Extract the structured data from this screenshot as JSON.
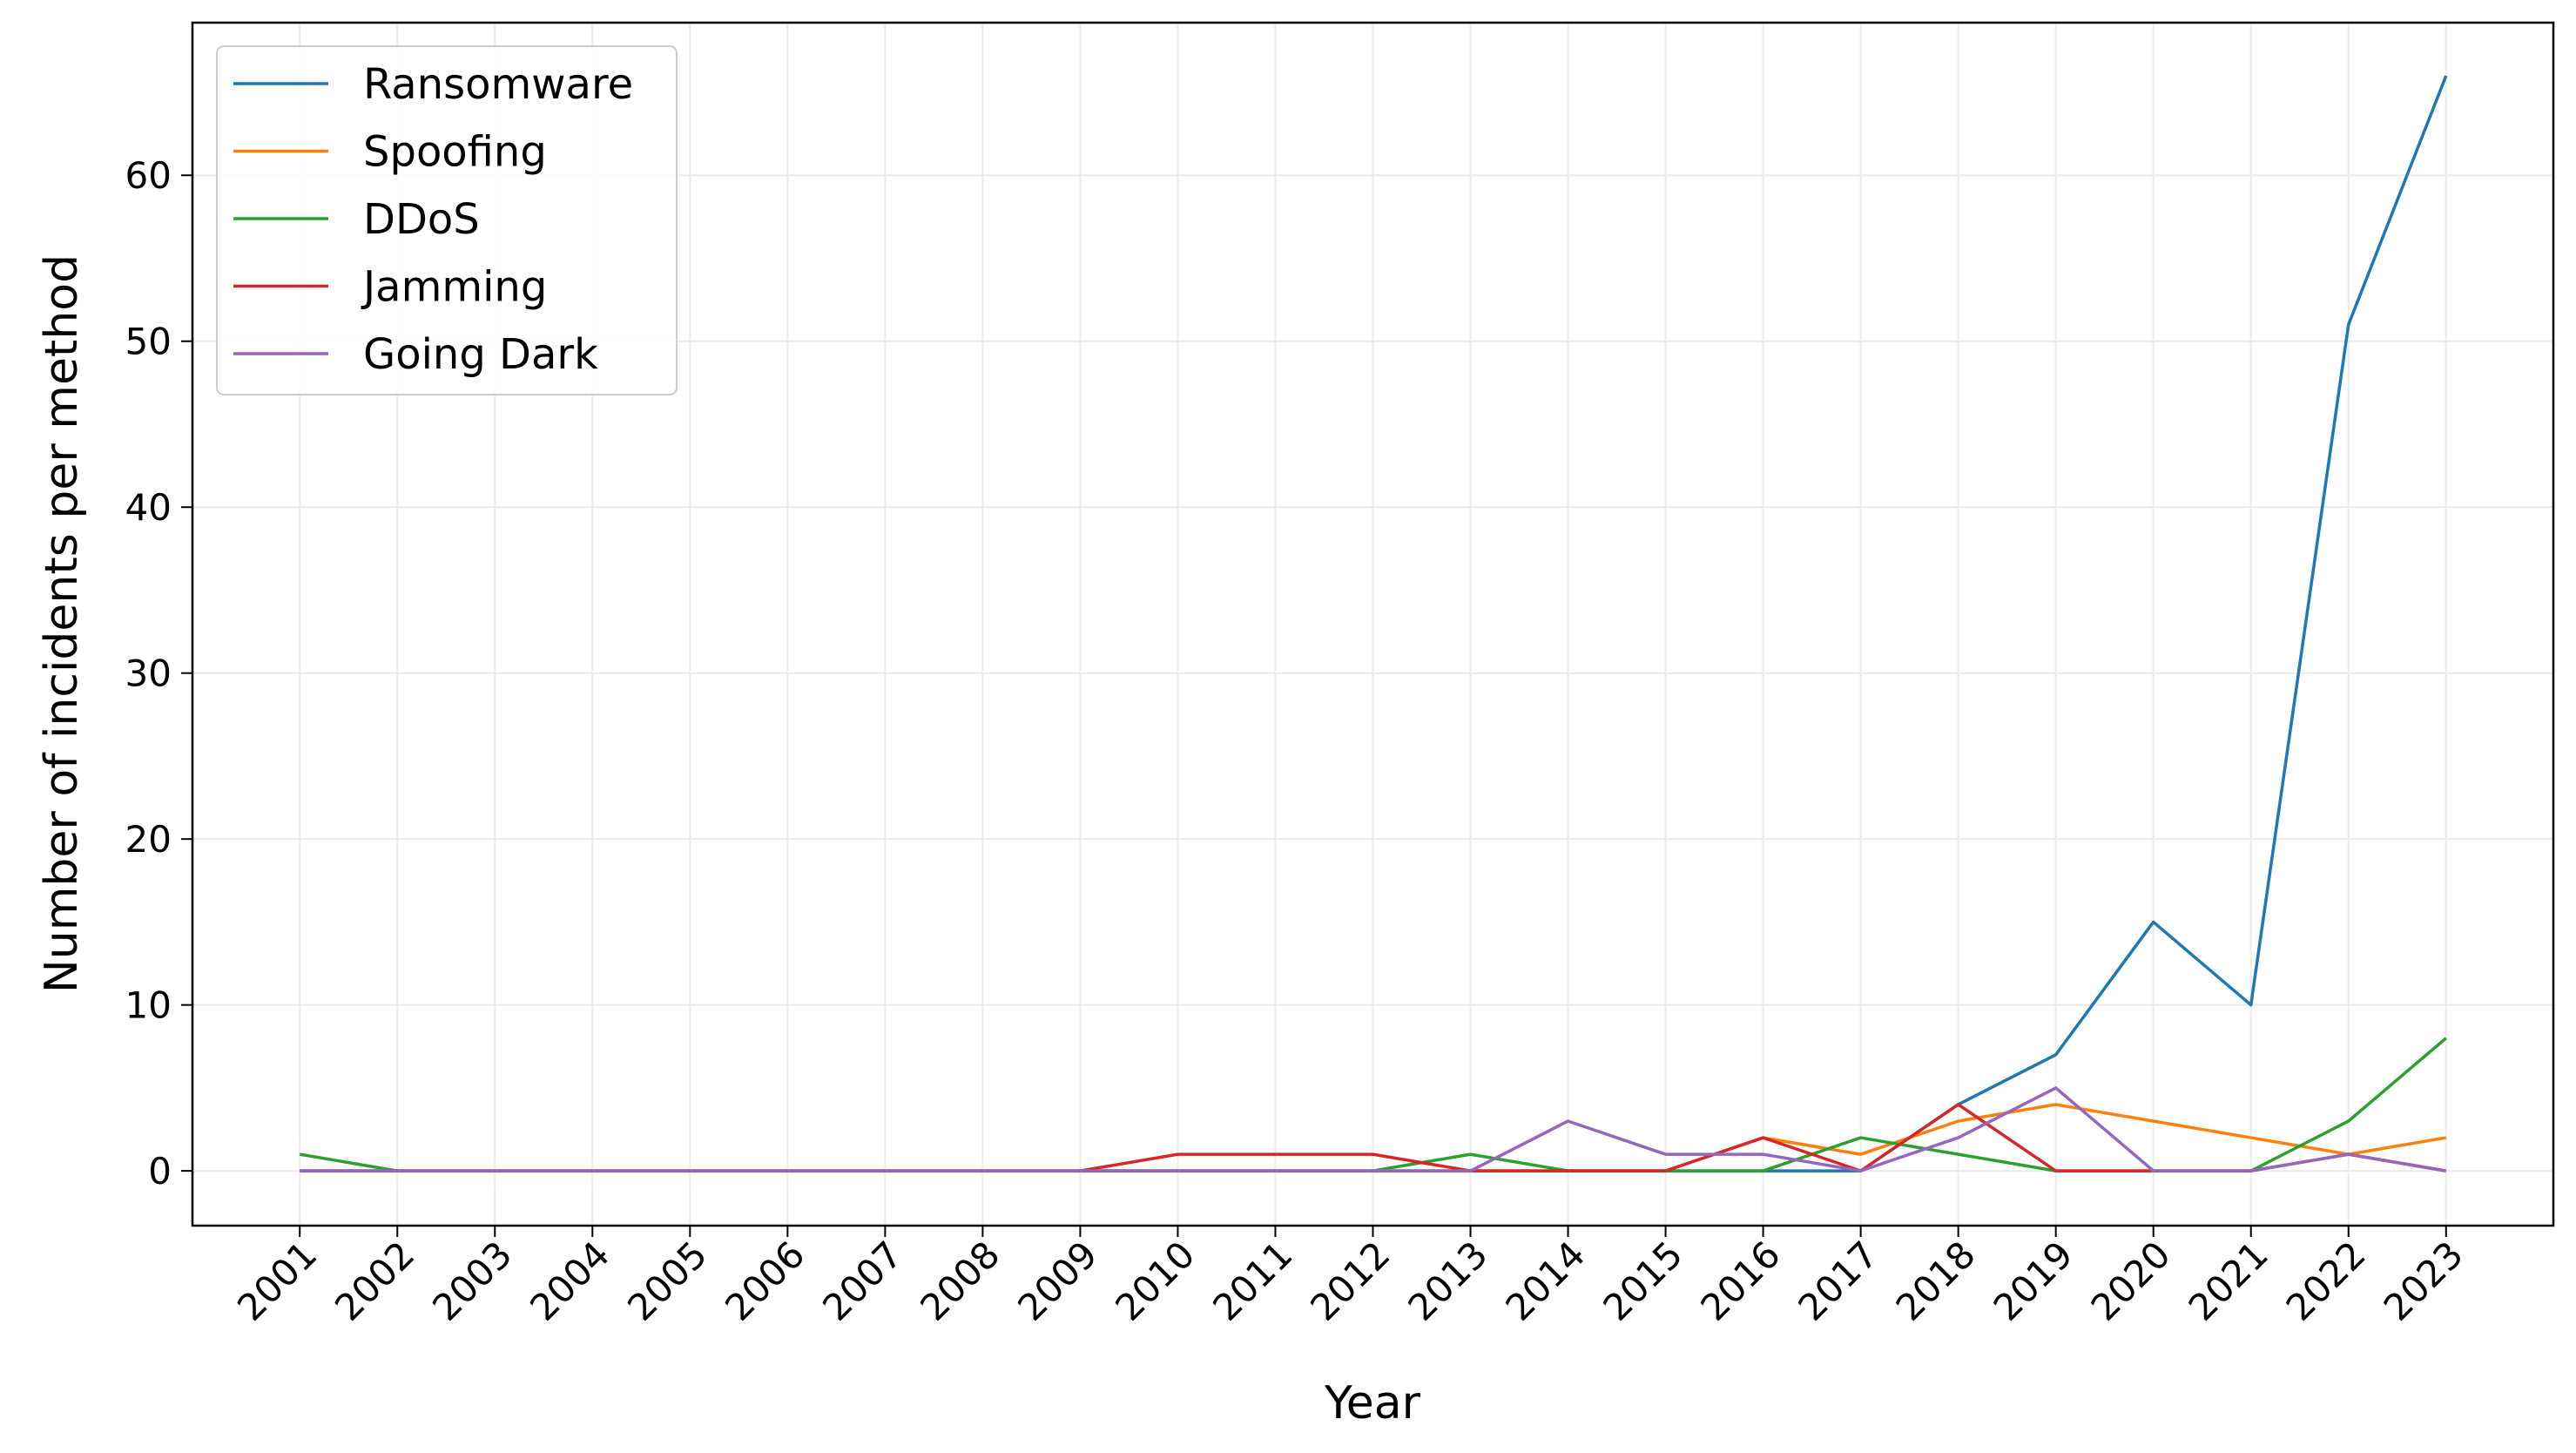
{
  "chart_data": {
    "type": "line",
    "x_label": "Year",
    "y_label": "Number of incidents per method",
    "x": [
      2001,
      2002,
      2003,
      2004,
      2005,
      2006,
      2007,
      2008,
      2009,
      2010,
      2011,
      2012,
      2013,
      2014,
      2015,
      2016,
      2017,
      2018,
      2019,
      2020,
      2021,
      2022,
      2023
    ],
    "series": [
      {
        "name": "Ransomware",
        "color": "#1f77b4",
        "values": [
          0,
          0,
          0,
          0,
          0,
          0,
          0,
          0,
          0,
          0,
          0,
          0,
          0,
          0,
          0,
          0,
          0,
          4,
          7,
          15,
          10,
          51,
          66
        ]
      },
      {
        "name": "Spoofing",
        "color": "#ff7f0e",
        "values": [
          0,
          0,
          0,
          0,
          0,
          0,
          0,
          0,
          0,
          0,
          0,
          0,
          0,
          0,
          0,
          2,
          1,
          3,
          4,
          3,
          2,
          1,
          2
        ]
      },
      {
        "name": "DDoS",
        "color": "#2ca02c",
        "values": [
          1,
          0,
          0,
          0,
          0,
          0,
          0,
          0,
          0,
          0,
          0,
          0,
          1,
          0,
          0,
          0,
          2,
          1,
          0,
          0,
          0,
          3,
          8
        ]
      },
      {
        "name": "Jamming",
        "color": "#d62728",
        "values": [
          0,
          0,
          0,
          0,
          0,
          0,
          0,
          0,
          0,
          1,
          1,
          1,
          0,
          0,
          0,
          2,
          0,
          4,
          0,
          0,
          0,
          1,
          0
        ]
      },
      {
        "name": "Going Dark",
        "color": "#9467bd",
        "values": [
          0,
          0,
          0,
          0,
          0,
          0,
          0,
          0,
          0,
          0,
          0,
          0,
          0,
          3,
          1,
          1,
          0,
          2,
          5,
          0,
          0,
          1,
          0
        ]
      }
    ],
    "xlim": [
      1999.9,
      2024.1
    ],
    "xticks": [
      2001,
      2002,
      2003,
      2004,
      2005,
      2006,
      2007,
      2008,
      2009,
      2010,
      2011,
      2012,
      2013,
      2014,
      2015,
      2016,
      2017,
      2018,
      2019,
      2020,
      2021,
      2022,
      2023
    ],
    "ylim": [
      -3.3,
      69.2
    ],
    "yticks": [
      0,
      10,
      20,
      30,
      40,
      50,
      60
    ],
    "grid": true,
    "legend": "upper left"
  }
}
